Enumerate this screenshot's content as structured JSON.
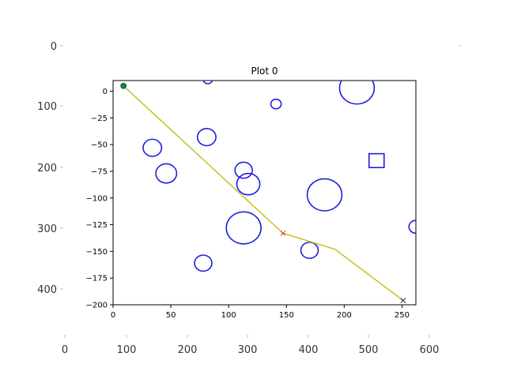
{
  "chart_data": {
    "type": "scatter",
    "title": "Plot 0",
    "outer_axes": {
      "x_ticks": [
        "0",
        "100",
        "200",
        "300",
        "400",
        "500",
        "600"
      ],
      "y_ticks": [
        "0",
        "100",
        "200",
        "300",
        "400"
      ]
    },
    "inner_axes": {
      "xlim": [
        0,
        262
      ],
      "ylim": [
        -200,
        10
      ],
      "x_ticks": [
        0,
        50,
        100,
        150,
        200,
        250
      ],
      "y_ticks": [
        0,
        -25,
        -50,
        -75,
        -100,
        -125,
        -150,
        -175,
        -200
      ],
      "grid": false
    },
    "colors": {
      "obstacle": "#1f1fdd",
      "path": "#c8c020",
      "start_fill": "#1f77b4",
      "start_edge": "#0a6e0a",
      "waypoint": "#e8382f",
      "goal": "#333333"
    },
    "obstacles": [
      {
        "shape": "circle",
        "cx": 82,
        "cy": 11,
        "r": 4
      },
      {
        "shape": "circle",
        "cx": 211,
        "cy": 3,
        "r": 15
      },
      {
        "shape": "circle",
        "cx": 141,
        "cy": -12,
        "r": 4.5
      },
      {
        "shape": "circle",
        "cx": 34,
        "cy": -53,
        "r": 8
      },
      {
        "shape": "circle",
        "cx": 81,
        "cy": -43,
        "r": 8
      },
      {
        "shape": "circle",
        "cx": 46,
        "cy": -77,
        "r": 9
      },
      {
        "shape": "circle",
        "cx": 113,
        "cy": -74,
        "r": 7.5
      },
      {
        "shape": "circle",
        "cx": 117,
        "cy": -87,
        "r": 10
      },
      {
        "shape": "circle",
        "cx": 183,
        "cy": -97,
        "r": 15
      },
      {
        "shape": "circle",
        "cx": 113,
        "cy": -128,
        "r": 15
      },
      {
        "shape": "circle",
        "cx": 170,
        "cy": -149,
        "r": 7.5
      },
      {
        "shape": "circle",
        "cx": 78,
        "cy": -161,
        "r": 7.5
      },
      {
        "shape": "circle",
        "cx": 262,
        "cy": -127,
        "r": 6
      },
      {
        "shape": "square",
        "cx": 228,
        "cy": -65,
        "half": 6.5
      }
    ],
    "path": {
      "x": [
        9,
        147,
        192,
        251
      ],
      "y": [
        5,
        -133,
        -148,
        -196
      ]
    },
    "start": {
      "x": 9,
      "y": 5
    },
    "waypoint": {
      "x": 147,
      "y": -133
    },
    "goal": {
      "x": 251,
      "y": -196
    }
  }
}
